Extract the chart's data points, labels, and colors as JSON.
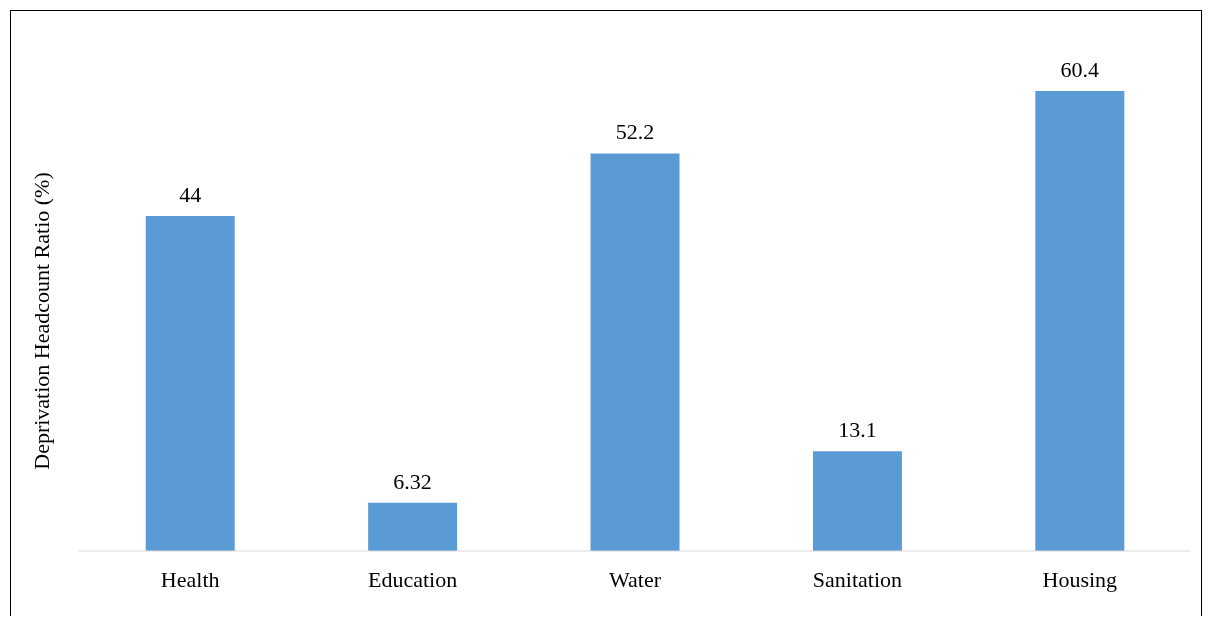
{
  "chart_data": {
    "type": "bar",
    "ylabel": "Deprivation Headcount Ratio (%)",
    "categories": [
      "Health",
      "Education",
      "Water",
      "Sanitation",
      "Housing"
    ],
    "values": [
      44,
      6.32,
      52.2,
      13.1,
      60.4
    ],
    "color": "#5b9bd5",
    "data_labels": true,
    "grid": false,
    "legend": false
  }
}
